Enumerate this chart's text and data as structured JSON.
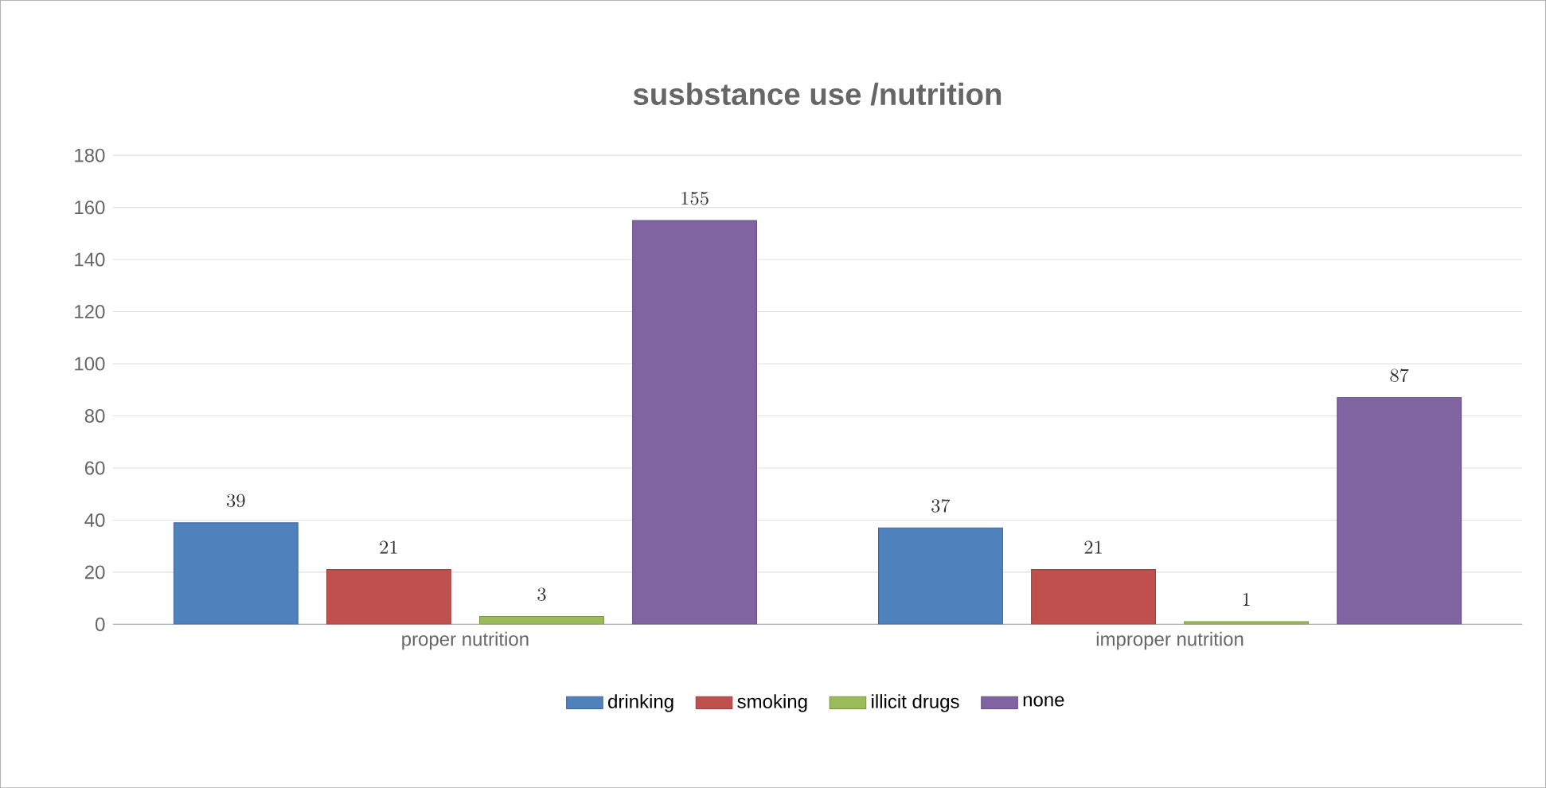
{
  "chart_data": {
    "type": "bar",
    "title": "susbstance use /nutrition",
    "categories": [
      "proper nutrition",
      "improper nutrition"
    ],
    "series": [
      {
        "name": "drinking",
        "color": "#4f81bd",
        "values": [
          39,
          37
        ]
      },
      {
        "name": "smoking",
        "color": "#c0504d",
        "values": [
          21,
          21
        ]
      },
      {
        "name": "illicit drugs",
        "color": "#9bbb59",
        "values": [
          3,
          1
        ]
      },
      {
        "name": "none",
        "color": "#8064a2",
        "values": [
          155,
          87
        ]
      }
    ],
    "ylim": [
      0,
      180
    ],
    "yticks": [
      0,
      20,
      40,
      60,
      80,
      100,
      120,
      140,
      160,
      180
    ],
    "grid": "y",
    "legend": "bottom",
    "data_labels": true
  }
}
